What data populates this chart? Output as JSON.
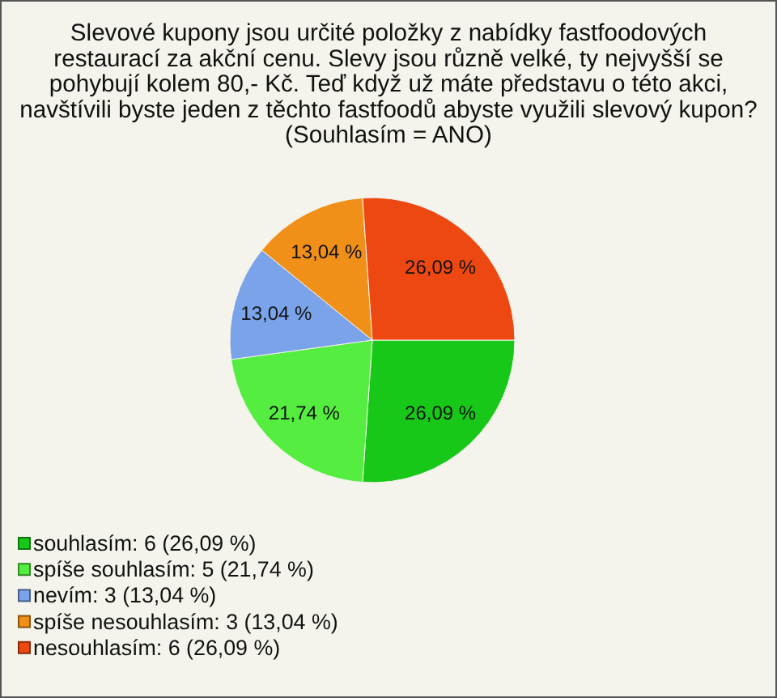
{
  "chart_data": {
    "type": "pie",
    "title": "Slevové kupony jsou určité položky z nabídky fastfoodových restaurací za akční cenu. Slevy jsou různě velké, ty nejvyšší se pohybují kolem 80,- Kč. Teď když už máte představu o této akci, navštívili byste jeden z těchto fastfoodů abyste využili slevový kupon? (Souhlasím = ANO)",
    "categories": [
      "souhlasím: 6 (26,09 %)",
      "spíše souhlasím: 5 (21,74 %)",
      "nevím: 3 (13,04 %)",
      "spíše nesouhlasím: 3 (13,04 %)",
      "nesouhlasím: 6 (26,09 %)"
    ],
    "values": [
      26.09,
      21.74,
      13.04,
      13.04,
      26.09
    ],
    "value_labels": [
      "26,09 %",
      "21,74 %",
      "13,04 %",
      "13,04 %",
      "26,09 %"
    ],
    "colors": [
      "#18c818",
      "#55ee40",
      "#7aa3ea",
      "#f09018",
      "#ee4812"
    ],
    "legend": "bottom left"
  }
}
